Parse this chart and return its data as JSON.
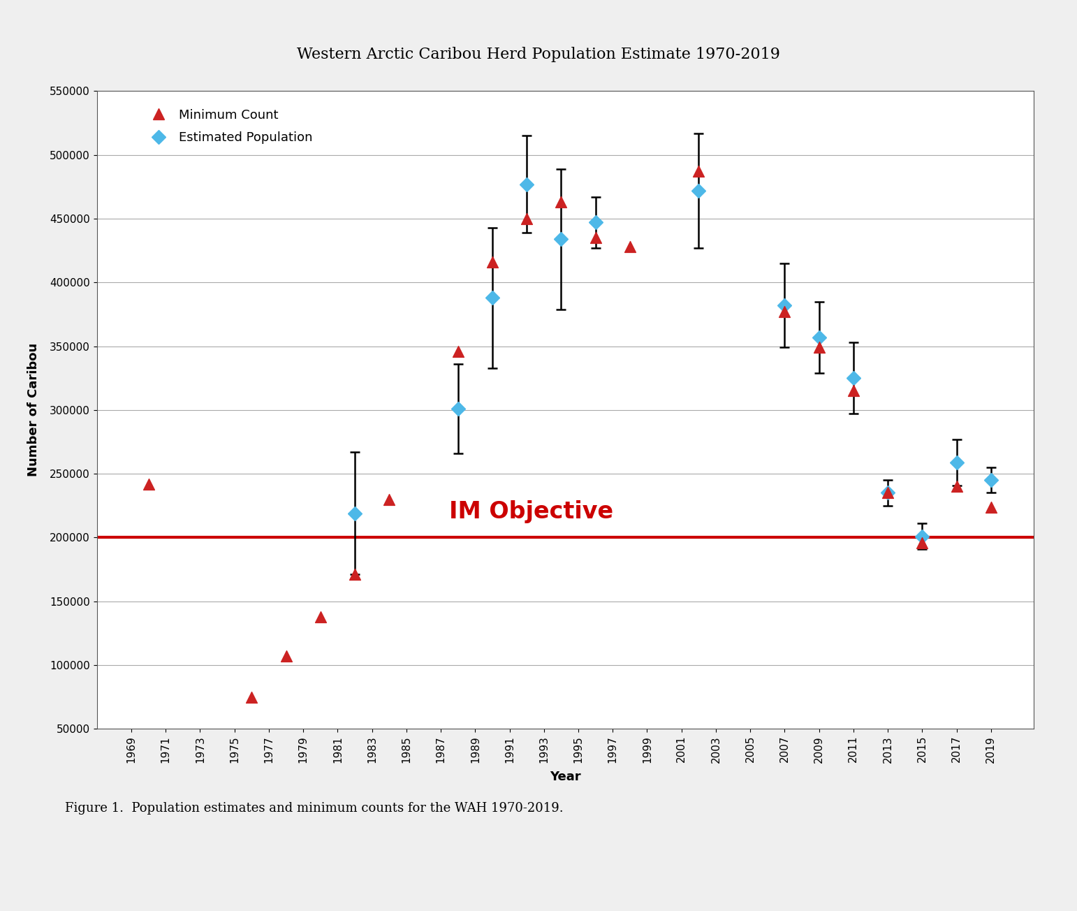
{
  "title": "Western Arctic Caribou Herd Population Estimate 1970-2019",
  "xlabel": "Year",
  "ylabel": "Number of Caribou",
  "caption": "Figure 1.  Population estimates and minimum counts for the WAH 1970-2019.",
  "im_objective_label": "IM Objective",
  "im_objective_value": 200000,
  "ylim": [
    50000,
    550000
  ],
  "yticks": [
    50000,
    100000,
    150000,
    200000,
    250000,
    300000,
    350000,
    400000,
    450000,
    500000,
    550000
  ],
  "min_count_data": [
    {
      "year": 1970,
      "value": 242000
    },
    {
      "year": 1976,
      "value": 75000
    },
    {
      "year": 1978,
      "value": 107000
    },
    {
      "year": 1980,
      "value": 138000
    },
    {
      "year": 1982,
      "value": 171000
    },
    {
      "year": 1984,
      "value": 230000
    },
    {
      "year": 1988,
      "value": 346000
    },
    {
      "year": 1990,
      "value": 416000
    },
    {
      "year": 1992,
      "value": 450000
    },
    {
      "year": 1994,
      "value": 463000
    },
    {
      "year": 1996,
      "value": 435000
    },
    {
      "year": 1998,
      "value": 428000
    },
    {
      "year": 2002,
      "value": 487000
    },
    {
      "year": 2007,
      "value": 377000
    },
    {
      "year": 2009,
      "value": 349000
    },
    {
      "year": 2011,
      "value": 315000
    },
    {
      "year": 2013,
      "value": 235000
    },
    {
      "year": 2015,
      "value": 196000
    },
    {
      "year": 2017,
      "value": 240000
    },
    {
      "year": 2019,
      "value": 224000
    }
  ],
  "est_pop_data": [
    {
      "year": 1982,
      "value": 219000,
      "err_low": 48000,
      "err_high": 48000
    },
    {
      "year": 1988,
      "value": 301000,
      "err_low": 35000,
      "err_high": 35000
    },
    {
      "year": 1990,
      "value": 388000,
      "err_low": 55000,
      "err_high": 55000
    },
    {
      "year": 1992,
      "value": 477000,
      "err_low": 38000,
      "err_high": 38000
    },
    {
      "year": 1994,
      "value": 434000,
      "err_low": 55000,
      "err_high": 55000
    },
    {
      "year": 1996,
      "value": 447000,
      "err_low": 20000,
      "err_high": 20000
    },
    {
      "year": 2002,
      "value": 472000,
      "err_low": 45000,
      "err_high": 45000
    },
    {
      "year": 2007,
      "value": 382000,
      "err_low": 33000,
      "err_high": 33000
    },
    {
      "year": 2009,
      "value": 357000,
      "err_low": 28000,
      "err_high": 28000
    },
    {
      "year": 2011,
      "value": 325000,
      "err_low": 28000,
      "err_high": 28000
    },
    {
      "year": 2013,
      "value": 235000,
      "err_low": 10000,
      "err_high": 10000
    },
    {
      "year": 2015,
      "value": 201000,
      "err_low": 10000,
      "err_high": 10000
    },
    {
      "year": 2017,
      "value": 259000,
      "err_low": 18000,
      "err_high": 18000
    },
    {
      "year": 2019,
      "value": 245000,
      "err_low": 10000,
      "err_high": 10000
    }
  ],
  "min_count_color": "#cc2222",
  "est_pop_color": "#4db8e8",
  "im_line_color": "#cc0000",
  "im_text_color": "#cc0000",
  "grid_color": "#aaaaaa",
  "background_color": "#ffffff",
  "fig_background": "#efefef"
}
